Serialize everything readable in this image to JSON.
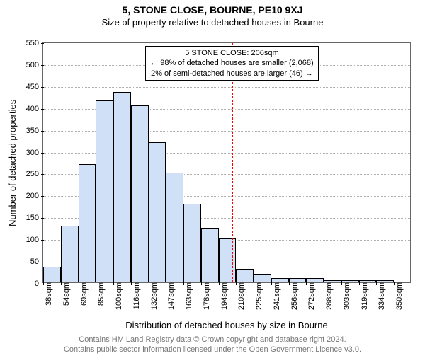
{
  "title": "5, STONE CLOSE, BOURNE, PE10 9XJ",
  "subtitle": "Size of property relative to detached houses in Bourne",
  "ylabel": "Number of detached properties",
  "xlabel": "Distribution of detached houses by size in Bourne",
  "footer1": "Contains HM Land Registry data © Crown copyright and database right 2024.",
  "footer2": "Contains public sector information licensed under the Open Government Licence v3.0.",
  "chart": {
    "type": "histogram",
    "background_color": "#ffffff",
    "border_color": "#666666",
    "grid_color": "#b0b0b0",
    "bar_fill": "#cfe0f7",
    "bar_stroke": "#000000",
    "refline_color": "#ff0000",
    "refline_dash": "1,2",
    "title_fontsize": 14,
    "subtitle_fontsize": 13,
    "label_fontsize": 13,
    "tick_fontsize": 11,
    "annot_fontsize": 11,
    "footer_fontsize": 11,
    "footer_color": "#777777",
    "ylim": [
      0,
      550
    ],
    "ytick_step": 50,
    "x_start": 38,
    "x_step": 15.6,
    "x_count": 21,
    "x_unit": "sqm",
    "bar_values": [
      35,
      130,
      270,
      415,
      435,
      405,
      320,
      250,
      180,
      125,
      100,
      30,
      20,
      10,
      10,
      10,
      5,
      5,
      5,
      5
    ],
    "reference_x": 206,
    "annotation": {
      "line1": "5 STONE CLOSE: 206sqm",
      "line2": "← 98% of detached houses are smaller (2,068)",
      "line3": "2% of semi-detached houses are larger (46) →"
    }
  }
}
